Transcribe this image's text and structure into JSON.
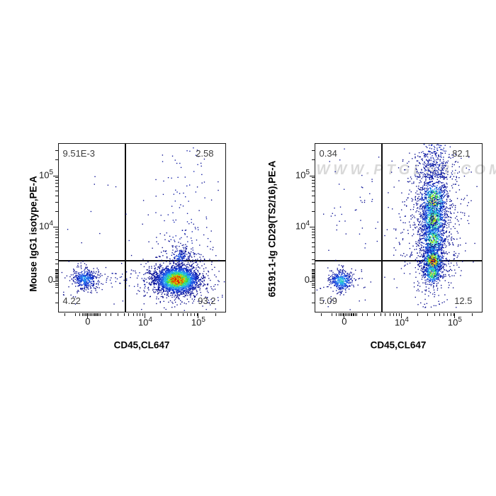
{
  "figure": {
    "background": "#ffffff"
  },
  "watermark": {
    "text": "WWW.PTGLAB.COM",
    "color": "#d9d9d9"
  },
  "chart_data": {
    "type": "flow_cytometry_pseudocolor_scatter",
    "colormap_stops": [
      [
        0.0,
        "#000080"
      ],
      [
        0.18,
        "#0a28c8"
      ],
      [
        0.32,
        "#1e64f0"
      ],
      [
        0.45,
        "#28b4f0"
      ],
      [
        0.55,
        "#2ee0c8"
      ],
      [
        0.68,
        "#35d721"
      ],
      [
        0.8,
        "#f0e800"
      ],
      [
        0.9,
        "#ff8c00"
      ],
      [
        1.0,
        "#e60000"
      ]
    ],
    "axes": {
      "x": {
        "label": "CD45,CL647",
        "majors": [
          {
            "frac": 0.174,
            "label": "0"
          },
          {
            "frac": 0.519,
            "base": "10",
            "exp": "4"
          },
          {
            "frac": 0.838,
            "base": "10",
            "exp": "5"
          }
        ],
        "minors": [
          0.037,
          0.098,
          0.127,
          0.143,
          0.151,
          0.158,
          0.166,
          0.182,
          0.19,
          0.198,
          0.205,
          0.213,
          0.22,
          0.227,
          0.234,
          0.24,
          0.247,
          0.283,
          0.311,
          0.357,
          0.392,
          0.419,
          0.448,
          0.469,
          0.487,
          0.504,
          0.617,
          0.674,
          0.715,
          0.747,
          0.773,
          0.795,
          0.814,
          0.831,
          0.944
        ]
      },
      "y": {
        "majors": [
          {
            "frac": 0.181,
            "label": "0"
          },
          {
            "frac": 0.506,
            "base": "10",
            "exp": "4"
          },
          {
            "frac": 0.81,
            "base": "10",
            "exp": "5"
          }
        ],
        "minors": [
          0.052,
          0.11,
          0.144,
          0.159,
          0.166,
          0.188,
          0.196,
          0.203,
          0.21,
          0.217,
          0.224,
          0.232,
          0.239,
          0.246,
          0.252,
          0.284,
          0.31,
          0.353,
          0.386,
          0.411,
          0.439,
          0.459,
          0.476,
          0.492,
          0.598,
          0.652,
          0.691,
          0.721,
          0.745,
          0.766,
          0.784,
          0.8,
          0.906,
          0.961
        ]
      }
    },
    "plots": [
      {
        "name": "mouse-igg1-isotype-control",
        "y_label": "Mouse IgG1 isotype,PE-A",
        "x_label": "CD45,CL647",
        "gate": {
          "x_frac": 0.4,
          "y_frac": 0.3
        },
        "quadrants": {
          "upper_left": "9.51E-3",
          "upper_right": "2.58",
          "lower_left": "4.22",
          "lower_right": "93.2"
        },
        "populations": [
          {
            "type": "gaussian",
            "cx": 0.157,
            "cy": 0.196,
            "sx": 0.036,
            "sy": 0.031,
            "n": 430,
            "peak": 0.4
          },
          {
            "type": "gaussian",
            "cx": 0.711,
            "cy": 0.19,
            "sx": 0.06,
            "sy": 0.038,
            "n": 3200,
            "peak": 1.0
          },
          {
            "type": "gaussian",
            "cx": 0.728,
            "cy": 0.33,
            "sx": 0.03,
            "sy": 0.026,
            "n": 130,
            "peak": 0.28
          },
          {
            "type": "vcolumn",
            "cx": 0.745,
            "sx": 0.095,
            "y0": 0.34,
            "y1": 0.99,
            "n": 135,
            "peak": 0.1,
            "bias": 2.0
          },
          {
            "type": "box",
            "x0": 0.16,
            "x1": 0.6,
            "y0": 0.13,
            "y1": 0.24,
            "n": 70,
            "peak": 0.08
          },
          {
            "type": "box",
            "x0": 0.03,
            "x1": 0.97,
            "y0": 0.04,
            "y1": 0.99,
            "n": 18,
            "peak": 0.05
          }
        ]
      },
      {
        "name": "cd29-ts2-16-stained",
        "y_label": "65191-1-Ig CD29(TS2/16),PE-A",
        "x_label": "CD45,CL647",
        "gate": {
          "x_frac": 0.4,
          "y_frac": 0.3
        },
        "quadrants": {
          "upper_left": "0.34",
          "upper_right": "82.1",
          "lower_left": "5.09",
          "lower_right": "12.5"
        },
        "populations": [
          {
            "type": "gaussian",
            "cx": 0.157,
            "cy": 0.183,
            "sx": 0.034,
            "sy": 0.03,
            "n": 430,
            "peak": 0.52
          },
          {
            "type": "gaussian",
            "cx": 0.712,
            "cy": 0.66,
            "sx": 0.04,
            "sy": 0.062,
            "n": 720,
            "peak": 0.8
          },
          {
            "type": "gaussian",
            "cx": 0.71,
            "cy": 0.545,
            "sx": 0.038,
            "sy": 0.058,
            "n": 650,
            "peak": 0.76
          },
          {
            "type": "gaussian",
            "cx": 0.708,
            "cy": 0.428,
            "sx": 0.036,
            "sy": 0.052,
            "n": 560,
            "peak": 0.72
          },
          {
            "type": "gaussian",
            "cx": 0.706,
            "cy": 0.302,
            "sx": 0.03,
            "sy": 0.04,
            "n": 620,
            "peak": 1.0
          },
          {
            "type": "gaussian",
            "cx": 0.704,
            "cy": 0.228,
            "sx": 0.028,
            "sy": 0.03,
            "n": 330,
            "peak": 0.78
          },
          {
            "type": "vcolumn",
            "cx": 0.712,
            "sx": 0.05,
            "y0": 0.8,
            "y1": 1.0,
            "n": 240,
            "peak": 0.15,
            "bias": 1.6
          },
          {
            "type": "vcolumn",
            "cx": 0.712,
            "sx": 0.09,
            "y0": 0.2,
            "y1": 0.95,
            "n": 650,
            "peak": 0.08,
            "bias": 1.0
          },
          {
            "type": "vcolumn",
            "cx": 0.705,
            "sx": 0.06,
            "y0": 0.02,
            "y1": 0.18,
            "n": 45,
            "peak": 0.06,
            "bias": 1.0
          },
          {
            "type": "box",
            "x0": 0.08,
            "x1": 0.38,
            "y0": 0.45,
            "y1": 0.97,
            "n": 26,
            "peak": 0.05
          },
          {
            "type": "box",
            "x0": 0.25,
            "x1": 0.58,
            "y0": 0.25,
            "y1": 0.7,
            "n": 22,
            "peak": 0.05
          },
          {
            "type": "box",
            "x0": 0.03,
            "x1": 0.97,
            "y0": 0.03,
            "y1": 0.99,
            "n": 16,
            "peak": 0.04
          }
        ]
      }
    ]
  }
}
